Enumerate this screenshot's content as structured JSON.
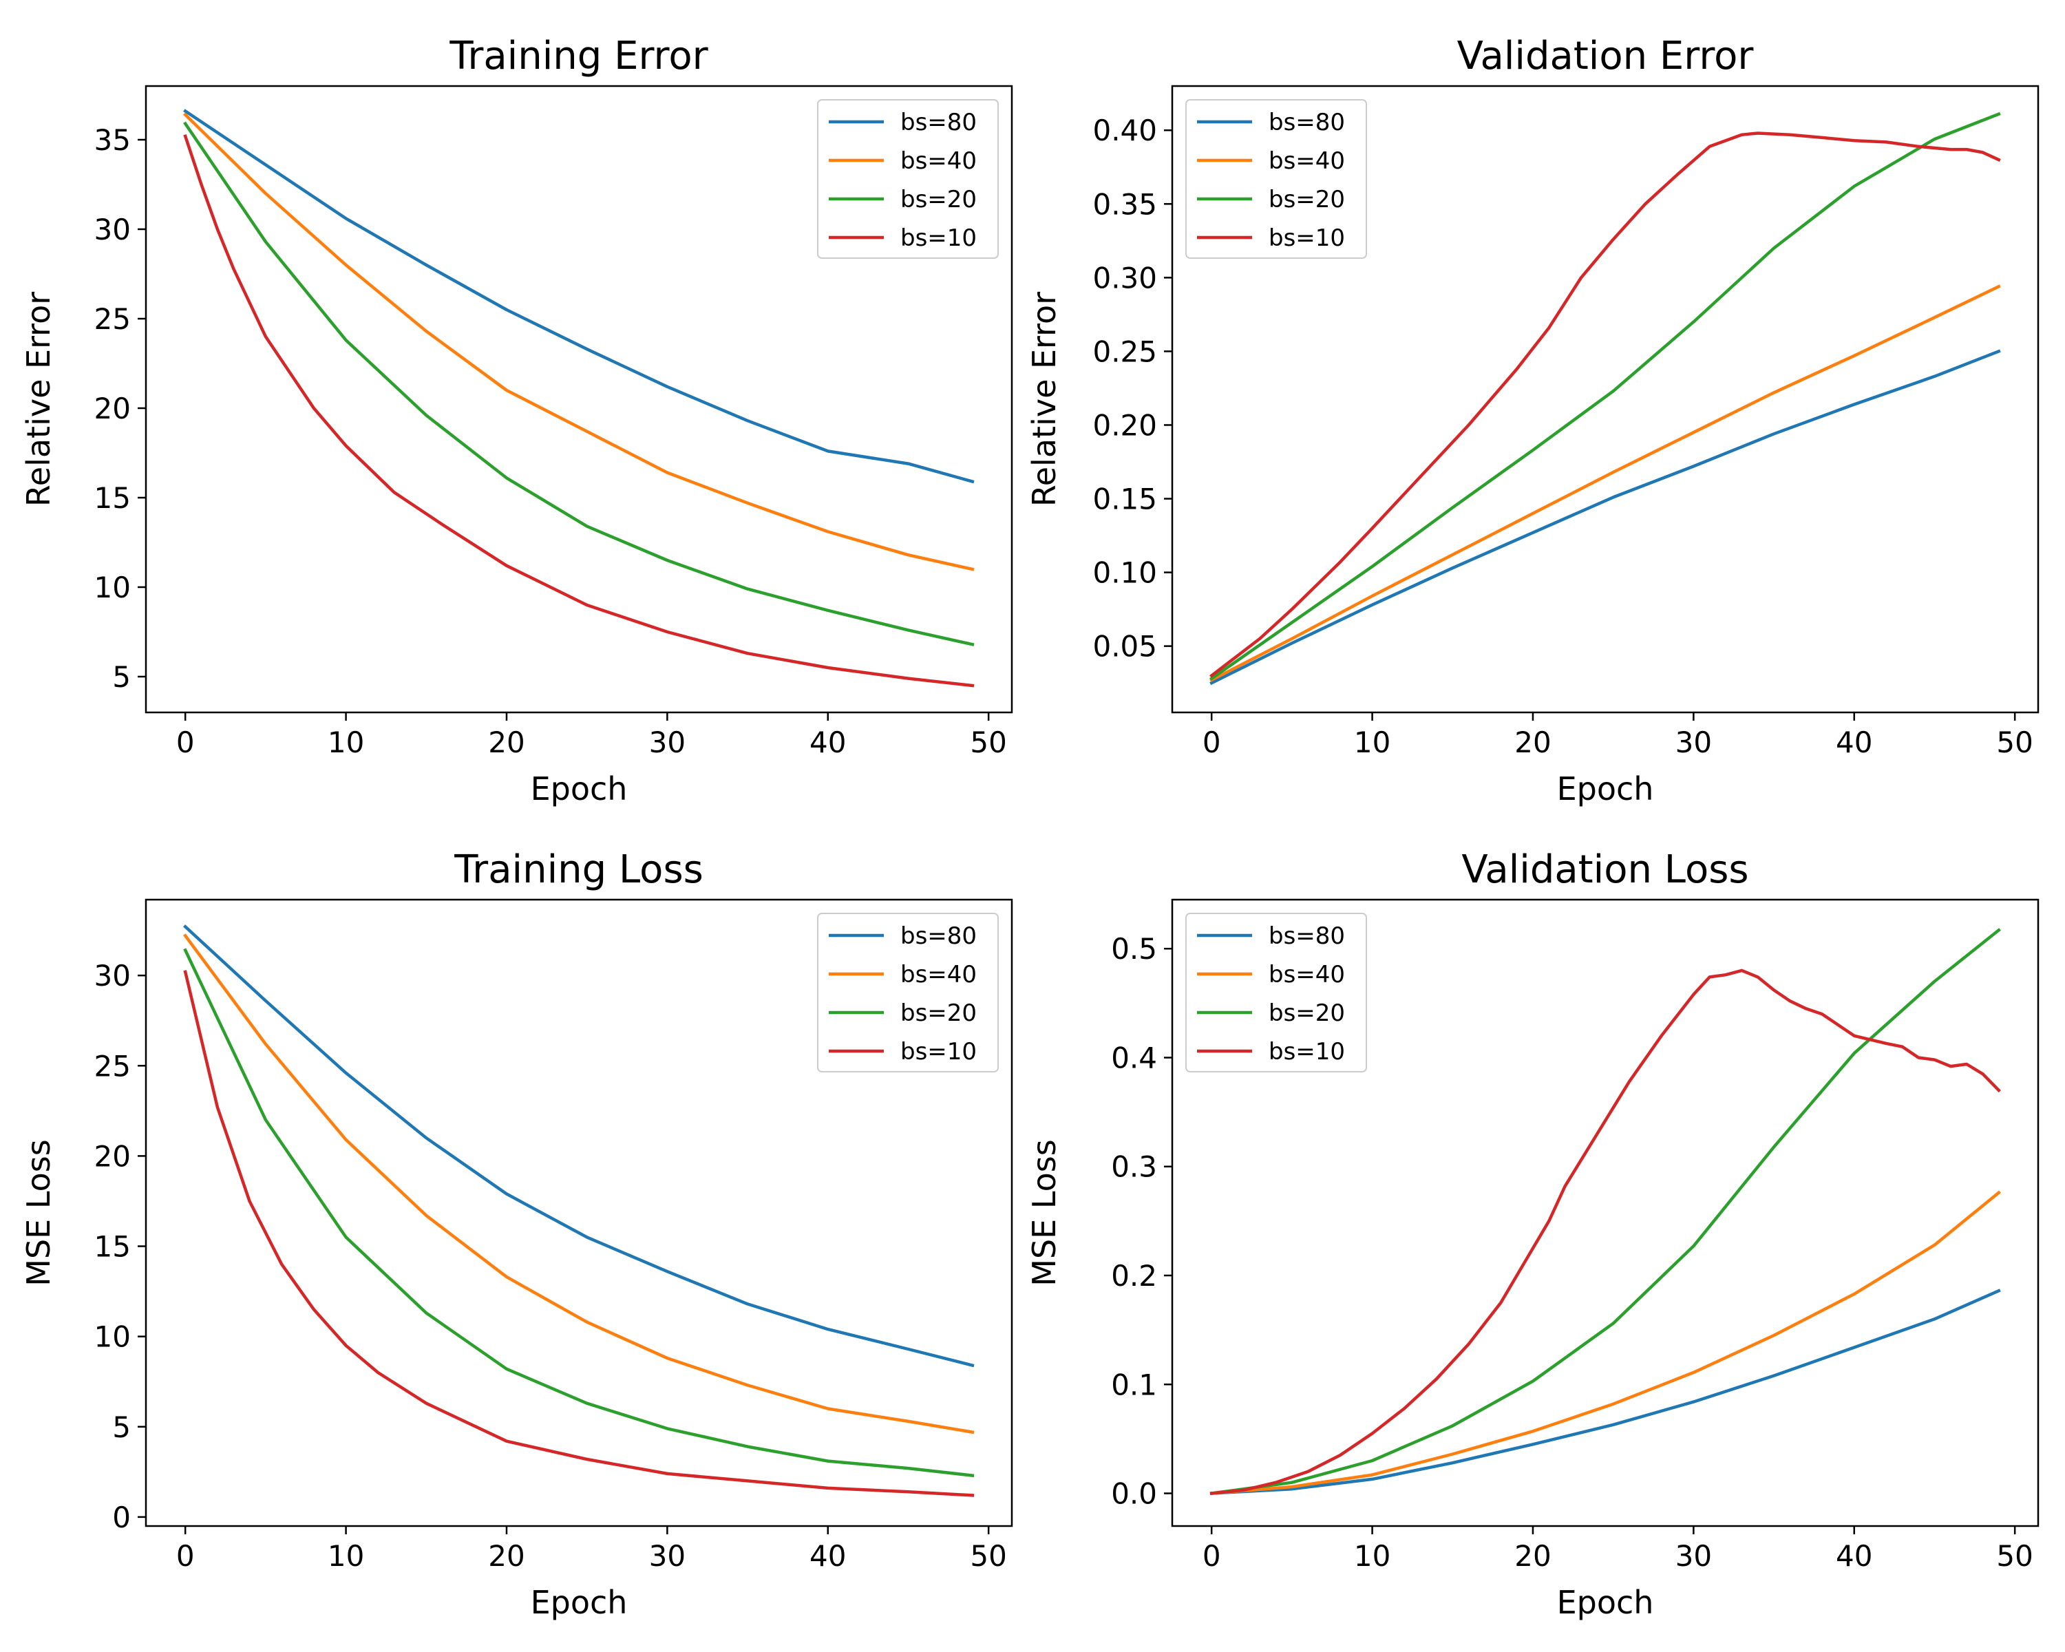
{
  "chart_data": [
    {
      "type": "line",
      "title": "Training Error",
      "xlabel": "Epoch",
      "ylabel": "Relative Error",
      "xlim": [
        -2.45,
        51.45
      ],
      "ylim": [
        3.0,
        38.0
      ],
      "xticks": [
        0,
        10,
        20,
        30,
        40,
        50
      ],
      "yticks": [
        5,
        10,
        15,
        20,
        25,
        30,
        35
      ],
      "xtick_labels": [
        "0",
        "10",
        "20",
        "30",
        "40",
        "50"
      ],
      "ytick_labels": [
        "5",
        "10",
        "15",
        "20",
        "25",
        "30",
        "35"
      ],
      "legend": "upper right",
      "grid": false,
      "series": [
        {
          "name": "bs=80",
          "color": "#1f77b4",
          "x": [
            0,
            5,
            10,
            15,
            20,
            25,
            30,
            35,
            40,
            45,
            49
          ],
          "y": [
            36.6,
            33.6,
            30.6,
            28.0,
            25.5,
            23.3,
            21.2,
            19.3,
            17.6,
            16.9,
            15.9
          ]
        },
        {
          "name": "bs=40",
          "color": "#ff7f0e",
          "x": [
            0,
            5,
            10,
            15,
            20,
            25,
            30,
            35,
            40,
            45,
            49
          ],
          "y": [
            36.4,
            32.0,
            28.0,
            24.3,
            21.0,
            18.7,
            16.4,
            14.7,
            13.1,
            11.8,
            11.0
          ]
        },
        {
          "name": "bs=20",
          "color": "#2ca02c",
          "x": [
            0,
            5,
            10,
            15,
            20,
            25,
            30,
            35,
            40,
            45,
            49
          ],
          "y": [
            35.9,
            29.3,
            23.8,
            19.6,
            16.1,
            13.4,
            11.5,
            9.9,
            8.7,
            7.6,
            6.8
          ]
        },
        {
          "name": "bs=10",
          "color": "#d62728",
          "x": [
            0,
            1,
            2,
            3,
            5,
            8,
            10,
            13,
            16,
            20,
            25,
            30,
            35,
            40,
            45,
            49
          ],
          "y": [
            35.2,
            32.5,
            30.0,
            27.8,
            24.0,
            20.0,
            17.9,
            15.3,
            13.5,
            11.2,
            9.0,
            7.5,
            6.3,
            5.5,
            4.9,
            4.5
          ]
        }
      ]
    },
    {
      "type": "line",
      "title": "Validation Error",
      "xlabel": "Epoch",
      "ylabel": "Relative Error",
      "xlim": [
        -2.45,
        51.45
      ],
      "ylim": [
        0.005,
        0.43
      ],
      "xticks": [
        0,
        10,
        20,
        30,
        40,
        50
      ],
      "yticks": [
        0.05,
        0.1,
        0.15,
        0.2,
        0.25,
        0.3,
        0.35,
        0.4
      ],
      "xtick_labels": [
        "0",
        "10",
        "20",
        "30",
        "40",
        "50"
      ],
      "ytick_labels": [
        "0.05",
        "0.10",
        "0.15",
        "0.20",
        "0.25",
        "0.30",
        "0.35",
        "0.40"
      ],
      "legend": "upper left",
      "grid": false,
      "series": [
        {
          "name": "bs=80",
          "color": "#1f77b4",
          "x": [
            0,
            5,
            10,
            15,
            20,
            25,
            30,
            35,
            40,
            45,
            49
          ],
          "y": [
            0.025,
            0.052,
            0.078,
            0.103,
            0.127,
            0.151,
            0.172,
            0.194,
            0.214,
            0.233,
            0.25
          ]
        },
        {
          "name": "bs=40",
          "color": "#ff7f0e",
          "x": [
            0,
            5,
            10,
            15,
            20,
            25,
            30,
            35,
            40,
            45,
            49
          ],
          "y": [
            0.027,
            0.055,
            0.084,
            0.112,
            0.14,
            0.168,
            0.195,
            0.222,
            0.247,
            0.273,
            0.294
          ]
        },
        {
          "name": "bs=20",
          "color": "#2ca02c",
          "x": [
            0,
            5,
            10,
            15,
            20,
            25,
            30,
            35,
            40,
            45,
            49
          ],
          "y": [
            0.028,
            0.066,
            0.104,
            0.144,
            0.183,
            0.223,
            0.27,
            0.32,
            0.362,
            0.394,
            0.411
          ]
        },
        {
          "name": "bs=10",
          "color": "#d62728",
          "x": [
            0,
            3,
            5,
            8,
            10,
            13,
            16,
            19,
            21,
            23,
            25,
            27,
            29,
            31,
            33,
            34,
            36,
            38,
            40,
            42,
            44,
            46,
            47,
            48,
            49
          ],
          "y": [
            0.03,
            0.055,
            0.075,
            0.107,
            0.13,
            0.165,
            0.2,
            0.238,
            0.266,
            0.3,
            0.326,
            0.35,
            0.37,
            0.389,
            0.397,
            0.398,
            0.397,
            0.395,
            0.393,
            0.392,
            0.389,
            0.387,
            0.387,
            0.385,
            0.38
          ]
        }
      ]
    },
    {
      "type": "line",
      "title": "Training Loss",
      "xlabel": "Epoch",
      "ylabel": "MSE Loss",
      "xlim": [
        -2.45,
        51.45
      ],
      "ylim": [
        -0.5,
        34.2
      ],
      "xticks": [
        0,
        10,
        20,
        30,
        40,
        50
      ],
      "yticks": [
        0,
        5,
        10,
        15,
        20,
        25,
        30
      ],
      "xtick_labels": [
        "0",
        "10",
        "20",
        "30",
        "40",
        "50"
      ],
      "ytick_labels": [
        "0",
        "5",
        "10",
        "15",
        "20",
        "25",
        "30"
      ],
      "legend": "upper right",
      "grid": false,
      "series": [
        {
          "name": "bs=80",
          "color": "#1f77b4",
          "x": [
            0,
            5,
            10,
            15,
            20,
            25,
            30,
            35,
            40,
            45,
            49
          ],
          "y": [
            32.7,
            28.6,
            24.6,
            21.0,
            17.9,
            15.5,
            13.6,
            11.8,
            10.4,
            9.3,
            8.4
          ]
        },
        {
          "name": "bs=40",
          "color": "#ff7f0e",
          "x": [
            0,
            5,
            10,
            15,
            20,
            25,
            30,
            35,
            40,
            45,
            49
          ],
          "y": [
            32.2,
            26.2,
            20.9,
            16.7,
            13.3,
            10.8,
            8.8,
            7.3,
            6.0,
            5.3,
            4.7
          ]
        },
        {
          "name": "bs=20",
          "color": "#2ca02c",
          "x": [
            0,
            5,
            10,
            15,
            20,
            25,
            30,
            35,
            40,
            45,
            49
          ],
          "y": [
            31.4,
            22.0,
            15.5,
            11.3,
            8.2,
            6.3,
            4.9,
            3.9,
            3.1,
            2.7,
            2.3
          ]
        },
        {
          "name": "bs=10",
          "color": "#d62728",
          "x": [
            0,
            2,
            4,
            6,
            8,
            10,
            12,
            15,
            20,
            25,
            30,
            35,
            40,
            45,
            49
          ],
          "y": [
            30.2,
            22.7,
            17.5,
            14.0,
            11.5,
            9.5,
            8.0,
            6.3,
            4.2,
            3.2,
            2.4,
            2.0,
            1.6,
            1.4,
            1.2
          ]
        }
      ]
    },
    {
      "type": "line",
      "title": "Validation Loss",
      "xlabel": "Epoch",
      "ylabel": "MSE Loss",
      "xlim": [
        -2.45,
        51.45
      ],
      "ylim": [
        -0.03,
        0.545
      ],
      "xticks": [
        0,
        10,
        20,
        30,
        40,
        50
      ],
      "yticks": [
        0.0,
        0.1,
        0.2,
        0.3,
        0.4,
        0.5
      ],
      "xtick_labels": [
        "0",
        "10",
        "20",
        "30",
        "40",
        "50"
      ],
      "ytick_labels": [
        "0.0",
        "0.1",
        "0.2",
        "0.3",
        "0.4",
        "0.5"
      ],
      "legend": "upper left",
      "grid": false,
      "series": [
        {
          "name": "bs=80",
          "color": "#1f77b4",
          "x": [
            0,
            5,
            10,
            15,
            20,
            25,
            30,
            35,
            40,
            45,
            49
          ],
          "y": [
            0.0,
            0.004,
            0.013,
            0.028,
            0.045,
            0.063,
            0.084,
            0.108,
            0.134,
            0.16,
            0.186
          ]
        },
        {
          "name": "bs=40",
          "color": "#ff7f0e",
          "x": [
            0,
            5,
            10,
            15,
            20,
            25,
            30,
            35,
            40,
            45,
            49
          ],
          "y": [
            0.0,
            0.006,
            0.017,
            0.036,
            0.057,
            0.082,
            0.111,
            0.145,
            0.183,
            0.228,
            0.276
          ]
        },
        {
          "name": "bs=20",
          "color": "#2ca02c",
          "x": [
            0,
            5,
            10,
            15,
            20,
            25,
            30,
            35,
            40,
            45,
            49
          ],
          "y": [
            0.0,
            0.01,
            0.03,
            0.062,
            0.103,
            0.156,
            0.227,
            0.318,
            0.404,
            0.47,
            0.517
          ]
        },
        {
          "name": "bs=10",
          "color": "#d62728",
          "x": [
            0,
            2,
            4,
            6,
            8,
            10,
            12,
            14,
            16,
            18,
            20,
            21,
            22,
            24,
            26,
            28,
            30,
            31,
            32,
            33,
            34,
            35,
            36,
            37,
            38,
            40,
            42,
            43,
            44,
            45,
            46,
            47,
            48,
            49
          ],
          "y": [
            0.0,
            0.003,
            0.01,
            0.02,
            0.035,
            0.055,
            0.078,
            0.105,
            0.137,
            0.175,
            0.225,
            0.25,
            0.282,
            0.33,
            0.378,
            0.42,
            0.458,
            0.474,
            0.476,
            0.48,
            0.474,
            0.462,
            0.452,
            0.445,
            0.44,
            0.42,
            0.413,
            0.41,
            0.4,
            0.398,
            0.392,
            0.394,
            0.385,
            0.37
          ]
        }
      ]
    }
  ]
}
